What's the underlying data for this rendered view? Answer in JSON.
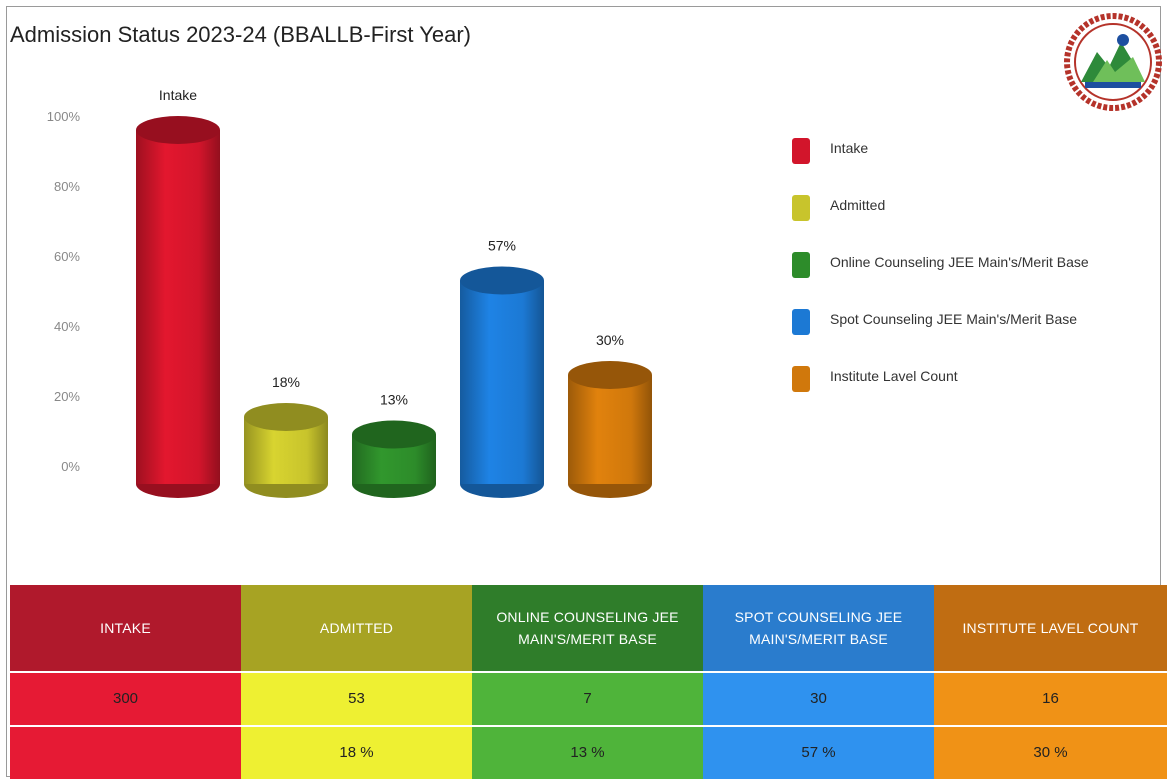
{
  "title": "Admission Status 2023-24 (BBALLB-First Year)",
  "chart_data": {
    "type": "bar",
    "title": "Admission Status 2023-24 (BBALLB-First Year)",
    "y_ticks": [
      "0%",
      "20%",
      "40%",
      "60%",
      "80%",
      "100%"
    ],
    "ylim": [
      0,
      100
    ],
    "categories": [
      "Intake",
      "Admitted",
      "Online Counseling JEE Main's/Merit Base",
      "Spot Counseling JEE Main's/Merit Base",
      "Institute Lavel Count"
    ],
    "values": [
      100,
      18,
      13,
      57,
      30
    ],
    "data_labels": [
      "Intake",
      "18%",
      "13%",
      "57%",
      "30%"
    ],
    "colors": [
      "#d2152b",
      "#c8c42c",
      "#2d8c2a",
      "#1c79d4",
      "#d0780c"
    ],
    "legend_position": "right"
  },
  "legend": [
    {
      "label": "Intake",
      "color": "#d2152b"
    },
    {
      "label": "Admitted",
      "color": "#c8c42c"
    },
    {
      "label": "Online Counseling JEE Main's/Merit Base",
      "color": "#2d8c2a"
    },
    {
      "label": "Spot Counseling JEE Main's/Merit Base",
      "color": "#1c79d4"
    },
    {
      "label": "Institute Lavel Count",
      "color": "#d0780c"
    }
  ],
  "table": {
    "headers": [
      "INTAKE",
      "ADMITTED",
      "ONLINE COUNSELING JEE MAIN'S/MERIT BASE",
      "SPOT COUNSELING JEE MAIN'S/MERIT BASE",
      "INSTITUTE LAVEL COUNT"
    ],
    "counts": [
      "300",
      "53",
      "7",
      "30",
      "16"
    ],
    "percents": [
      "",
      "18 %",
      "13 %",
      "57 %",
      "30 %"
    ],
    "header_colors": [
      "#b0192c",
      "#a7a323",
      "#2f7d2a",
      "#2a7ccd",
      "#c06d12"
    ],
    "body_colors": [
      "#e61a34",
      "#eef032",
      "#4fb43a",
      "#2f92ef",
      "#f09216"
    ]
  }
}
